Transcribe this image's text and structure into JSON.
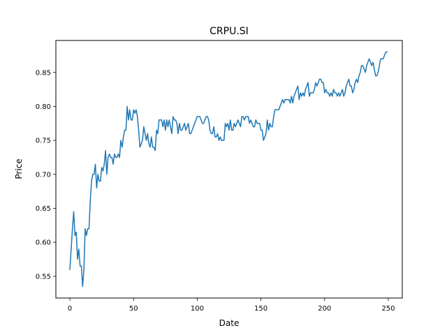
{
  "chart_data": {
    "type": "line",
    "title": "CRPU.SI",
    "xlabel": "Date",
    "ylabel": "Price",
    "xlim": [
      -11,
      261
    ],
    "ylim": [
      0.518,
      0.897
    ],
    "xticks": [
      0,
      50,
      100,
      150,
      200,
      250
    ],
    "yticks": [
      0.55,
      0.6,
      0.65,
      0.7,
      0.75,
      0.8,
      0.85
    ],
    "xtick_labels": [
      "0",
      "50",
      "100",
      "150",
      "200",
      "250"
    ],
    "ytick_labels": [
      "0.55",
      "0.60",
      "0.65",
      "0.70",
      "0.75",
      "0.80",
      "0.85"
    ],
    "grid": false,
    "series": [
      {
        "color": "#1f77b4",
        "points": [
          [
            0,
            0.56
          ],
          [
            1,
            0.59
          ],
          [
            2,
            0.62
          ],
          [
            3,
            0.645
          ],
          [
            4,
            0.61
          ],
          [
            5,
            0.615
          ],
          [
            6,
            0.575
          ],
          [
            7,
            0.59
          ],
          [
            8,
            0.565
          ],
          [
            9,
            0.565
          ],
          [
            10,
            0.535
          ],
          [
            11,
            0.56
          ],
          [
            12,
            0.62
          ],
          [
            13,
            0.61
          ],
          [
            14,
            0.62
          ],
          [
            15,
            0.62
          ],
          [
            16,
            0.66
          ],
          [
            17,
            0.69
          ],
          [
            18,
            0.7
          ],
          [
            19,
            0.7
          ],
          [
            20,
            0.715
          ],
          [
            21,
            0.68
          ],
          [
            22,
            0.7
          ],
          [
            23,
            0.69
          ],
          [
            24,
            0.69
          ],
          [
            25,
            0.71
          ],
          [
            26,
            0.705
          ],
          [
            27,
            0.715
          ],
          [
            28,
            0.735
          ],
          [
            29,
            0.7
          ],
          [
            30,
            0.725
          ],
          [
            31,
            0.73
          ],
          [
            32,
            0.725
          ],
          [
            33,
            0.725
          ],
          [
            34,
            0.715
          ],
          [
            35,
            0.73
          ],
          [
            36,
            0.725
          ],
          [
            37,
            0.725
          ],
          [
            38,
            0.73
          ],
          [
            39,
            0.725
          ],
          [
            40,
            0.75
          ],
          [
            41,
            0.74
          ],
          [
            42,
            0.755
          ],
          [
            43,
            0.765
          ],
          [
            44,
            0.765
          ],
          [
            45,
            0.8
          ],
          [
            46,
            0.78
          ],
          [
            47,
            0.795
          ],
          [
            48,
            0.78
          ],
          [
            49,
            0.78
          ],
          [
            50,
            0.795
          ],
          [
            51,
            0.79
          ],
          [
            52,
            0.795
          ],
          [
            53,
            0.785
          ],
          [
            54,
            0.765
          ],
          [
            55,
            0.74
          ],
          [
            56,
            0.745
          ],
          [
            57,
            0.75
          ],
          [
            58,
            0.77
          ],
          [
            59,
            0.76
          ],
          [
            60,
            0.75
          ],
          [
            61,
            0.76
          ],
          [
            62,
            0.745
          ],
          [
            63,
            0.74
          ],
          [
            64,
            0.755
          ],
          [
            65,
            0.74
          ],
          [
            66,
            0.74
          ],
          [
            67,
            0.735
          ],
          [
            68,
            0.765
          ],
          [
            69,
            0.76
          ],
          [
            70,
            0.78
          ],
          [
            71,
            0.78
          ],
          [
            72,
            0.78
          ],
          [
            73,
            0.77
          ],
          [
            74,
            0.78
          ],
          [
            75,
            0.765
          ],
          [
            76,
            0.78
          ],
          [
            77,
            0.77
          ],
          [
            78,
            0.78
          ],
          [
            79,
            0.77
          ],
          [
            80,
            0.76
          ],
          [
            81,
            0.785
          ],
          [
            82,
            0.78
          ],
          [
            83,
            0.78
          ],
          [
            84,
            0.775
          ],
          [
            85,
            0.76
          ],
          [
            86,
            0.775
          ],
          [
            87,
            0.765
          ],
          [
            88,
            0.765
          ],
          [
            89,
            0.77
          ],
          [
            90,
            0.775
          ],
          [
            91,
            0.765
          ],
          [
            92,
            0.77
          ],
          [
            93,
            0.775
          ],
          [
            94,
            0.76
          ],
          [
            95,
            0.76
          ],
          [
            96,
            0.765
          ],
          [
            97,
            0.77
          ],
          [
            98,
            0.775
          ],
          [
            99,
            0.78
          ],
          [
            100,
            0.785
          ],
          [
            101,
            0.785
          ],
          [
            102,
            0.785
          ],
          [
            103,
            0.78
          ],
          [
            104,
            0.775
          ],
          [
            105,
            0.775
          ],
          [
            106,
            0.78
          ],
          [
            107,
            0.785
          ],
          [
            108,
            0.785
          ],
          [
            109,
            0.78
          ],
          [
            110,
            0.765
          ],
          [
            111,
            0.76
          ],
          [
            112,
            0.76
          ],
          [
            113,
            0.77
          ],
          [
            114,
            0.755
          ],
          [
            115,
            0.755
          ],
          [
            116,
            0.76
          ],
          [
            117,
            0.75
          ],
          [
            118,
            0.755
          ],
          [
            119,
            0.75
          ],
          [
            120,
            0.75
          ],
          [
            121,
            0.75
          ],
          [
            122,
            0.775
          ],
          [
            123,
            0.77
          ],
          [
            124,
            0.775
          ],
          [
            125,
            0.765
          ],
          [
            126,
            0.78
          ],
          [
            127,
            0.765
          ],
          [
            128,
            0.765
          ],
          [
            129,
            0.775
          ],
          [
            130,
            0.77
          ],
          [
            131,
            0.775
          ],
          [
            132,
            0.78
          ],
          [
            133,
            0.775
          ],
          [
            134,
            0.77
          ],
          [
            135,
            0.785
          ],
          [
            136,
            0.785
          ],
          [
            137,
            0.78
          ],
          [
            138,
            0.785
          ],
          [
            139,
            0.785
          ],
          [
            140,
            0.785
          ],
          [
            141,
            0.775
          ],
          [
            142,
            0.78
          ],
          [
            143,
            0.775
          ],
          [
            144,
            0.77
          ],
          [
            145,
            0.77
          ],
          [
            146,
            0.78
          ],
          [
            147,
            0.775
          ],
          [
            148,
            0.775
          ],
          [
            149,
            0.775
          ],
          [
            150,
            0.765
          ],
          [
            151,
            0.765
          ],
          [
            152,
            0.75
          ],
          [
            153,
            0.755
          ],
          [
            154,
            0.76
          ],
          [
            155,
            0.78
          ],
          [
            156,
            0.765
          ],
          [
            157,
            0.775
          ],
          [
            158,
            0.77
          ],
          [
            159,
            0.77
          ],
          [
            160,
            0.785
          ],
          [
            161,
            0.795
          ],
          [
            162,
            0.795
          ],
          [
            163,
            0.795
          ],
          [
            164,
            0.795
          ],
          [
            165,
            0.8
          ],
          [
            166,
            0.805
          ],
          [
            167,
            0.81
          ],
          [
            168,
            0.805
          ],
          [
            169,
            0.81
          ],
          [
            170,
            0.81
          ],
          [
            171,
            0.81
          ],
          [
            172,
            0.81
          ],
          [
            173,
            0.805
          ],
          [
            174,
            0.815
          ],
          [
            175,
            0.805
          ],
          [
            176,
            0.815
          ],
          [
            177,
            0.82
          ],
          [
            178,
            0.825
          ],
          [
            179,
            0.83
          ],
          [
            180,
            0.81
          ],
          [
            181,
            0.82
          ],
          [
            182,
            0.815
          ],
          [
            183,
            0.82
          ],
          [
            184,
            0.815
          ],
          [
            185,
            0.825
          ],
          [
            186,
            0.83
          ],
          [
            187,
            0.835
          ],
          [
            188,
            0.815
          ],
          [
            189,
            0.82
          ],
          [
            190,
            0.82
          ],
          [
            191,
            0.82
          ],
          [
            192,
            0.825
          ],
          [
            193,
            0.835
          ],
          [
            194,
            0.83
          ],
          [
            195,
            0.835
          ],
          [
            196,
            0.84
          ],
          [
            197,
            0.84
          ],
          [
            198,
            0.835
          ],
          [
            199,
            0.835
          ],
          [
            200,
            0.82
          ],
          [
            201,
            0.825
          ],
          [
            202,
            0.82
          ],
          [
            203,
            0.82
          ],
          [
            204,
            0.815
          ],
          [
            205,
            0.82
          ],
          [
            206,
            0.815
          ],
          [
            207,
            0.825
          ],
          [
            208,
            0.82
          ],
          [
            209,
            0.82
          ],
          [
            210,
            0.815
          ],
          [
            211,
            0.82
          ],
          [
            212,
            0.815
          ],
          [
            213,
            0.82
          ],
          [
            214,
            0.825
          ],
          [
            215,
            0.815
          ],
          [
            216,
            0.82
          ],
          [
            217,
            0.83
          ],
          [
            218,
            0.835
          ],
          [
            219,
            0.84
          ],
          [
            220,
            0.83
          ],
          [
            221,
            0.83
          ],
          [
            222,
            0.82
          ],
          [
            223,
            0.825
          ],
          [
            224,
            0.835
          ],
          [
            225,
            0.84
          ],
          [
            226,
            0.835
          ],
          [
            227,
            0.845
          ],
          [
            228,
            0.85
          ],
          [
            229,
            0.86
          ],
          [
            230,
            0.86
          ],
          [
            231,
            0.855
          ],
          [
            232,
            0.85
          ],
          [
            233,
            0.86
          ],
          [
            234,
            0.865
          ],
          [
            235,
            0.87
          ],
          [
            236,
            0.865
          ],
          [
            237,
            0.86
          ],
          [
            238,
            0.865
          ],
          [
            239,
            0.855
          ],
          [
            240,
            0.845
          ],
          [
            241,
            0.845
          ],
          [
            242,
            0.85
          ],
          [
            243,
            0.86
          ],
          [
            244,
            0.87
          ],
          [
            245,
            0.87
          ],
          [
            246,
            0.87
          ],
          [
            247,
            0.875
          ],
          [
            248,
            0.88
          ],
          [
            249,
            0.88
          ]
        ]
      }
    ]
  }
}
